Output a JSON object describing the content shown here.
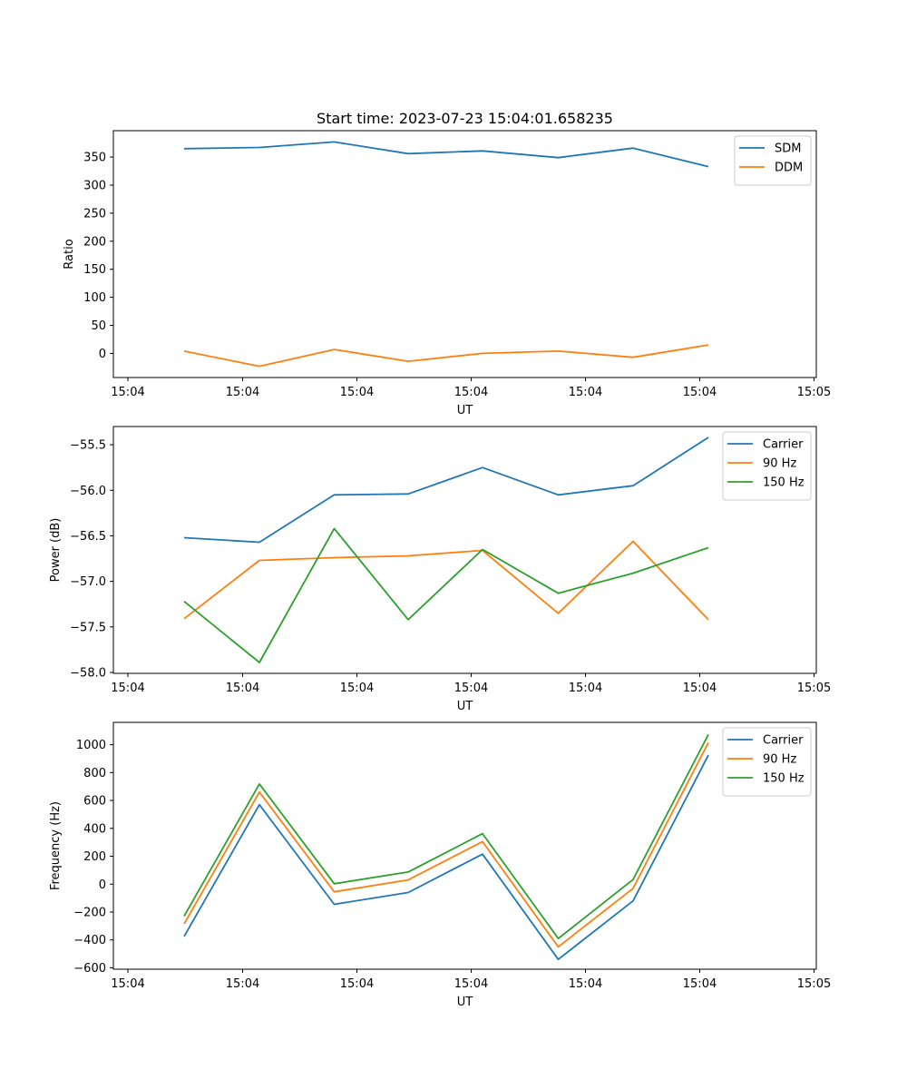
{
  "title": "Start time: 2023-07-23 15:04:01.658235",
  "chart_data": [
    {
      "type": "line",
      "xlabel": "UT",
      "ylabel": "Ratio",
      "x_tick_labels": [
        "15:04",
        "15:04",
        "15:04",
        "15:04",
        "15:04",
        "15:04",
        "15:05"
      ],
      "ylim": [
        -43,
        397
      ],
      "yticks": [
        0,
        50,
        100,
        150,
        200,
        250,
        300,
        350
      ],
      "legend_position": "top-right",
      "series": [
        {
          "name": "SDM",
          "color": "#1f77b4",
          "values": [
            365,
            367,
            377,
            356,
            361,
            349,
            366,
            333
          ]
        },
        {
          "name": "DDM",
          "color": "#ff7f0e",
          "values": [
            4,
            -23,
            7,
            -14,
            0,
            4,
            -7,
            15
          ]
        }
      ]
    },
    {
      "type": "line",
      "xlabel": "UT",
      "ylabel": "Power (dB)",
      "x_tick_labels": [
        "15:04",
        "15:04",
        "15:04",
        "15:04",
        "15:04",
        "15:04",
        "15:05"
      ],
      "ylim": [
        -58.01,
        -55.3
      ],
      "yticks": [
        -58.0,
        -57.5,
        -57.0,
        -56.5,
        -56.0,
        -55.5
      ],
      "tick_format": "1",
      "legend_position": "top-right",
      "series": [
        {
          "name": "Carrier",
          "color": "#1f77b4",
          "values": [
            -56.52,
            -56.57,
            -56.05,
            -56.04,
            -55.75,
            -56.05,
            -55.95,
            -55.42
          ]
        },
        {
          "name": "90 Hz",
          "color": "#ff7f0e",
          "values": [
            -57.41,
            -56.77,
            -56.74,
            -56.72,
            -56.66,
            -57.35,
            -56.56,
            -57.42
          ]
        },
        {
          "name": "150 Hz",
          "color": "#2ca02c",
          "values": [
            -57.22,
            -57.89,
            -56.42,
            -57.42,
            -56.65,
            -57.13,
            -56.91,
            -56.63
          ]
        }
      ]
    },
    {
      "type": "line",
      "xlabel": "UT",
      "ylabel": "Frequency (Hz)",
      "x_tick_labels": [
        "15:04",
        "15:04",
        "15:04",
        "15:04",
        "15:04",
        "15:04",
        "15:05"
      ],
      "ylim": [
        -610,
        1160
      ],
      "yticks": [
        -600,
        -400,
        -200,
        0,
        200,
        400,
        600,
        800,
        1000
      ],
      "legend_position": "top-right",
      "series": [
        {
          "name": "Carrier",
          "color": "#1f77b4",
          "values": [
            -375,
            570,
            -145,
            -60,
            215,
            -540,
            -120,
            925
          ]
        },
        {
          "name": "90 Hz",
          "color": "#ff7f0e",
          "values": [
            -285,
            660,
            -55,
            30,
            305,
            -450,
            -30,
            1015
          ]
        },
        {
          "name": "150 Hz",
          "color": "#2ca02c",
          "values": [
            -230,
            718,
            3,
            87,
            362,
            -390,
            33,
            1073
          ]
        }
      ]
    }
  ]
}
